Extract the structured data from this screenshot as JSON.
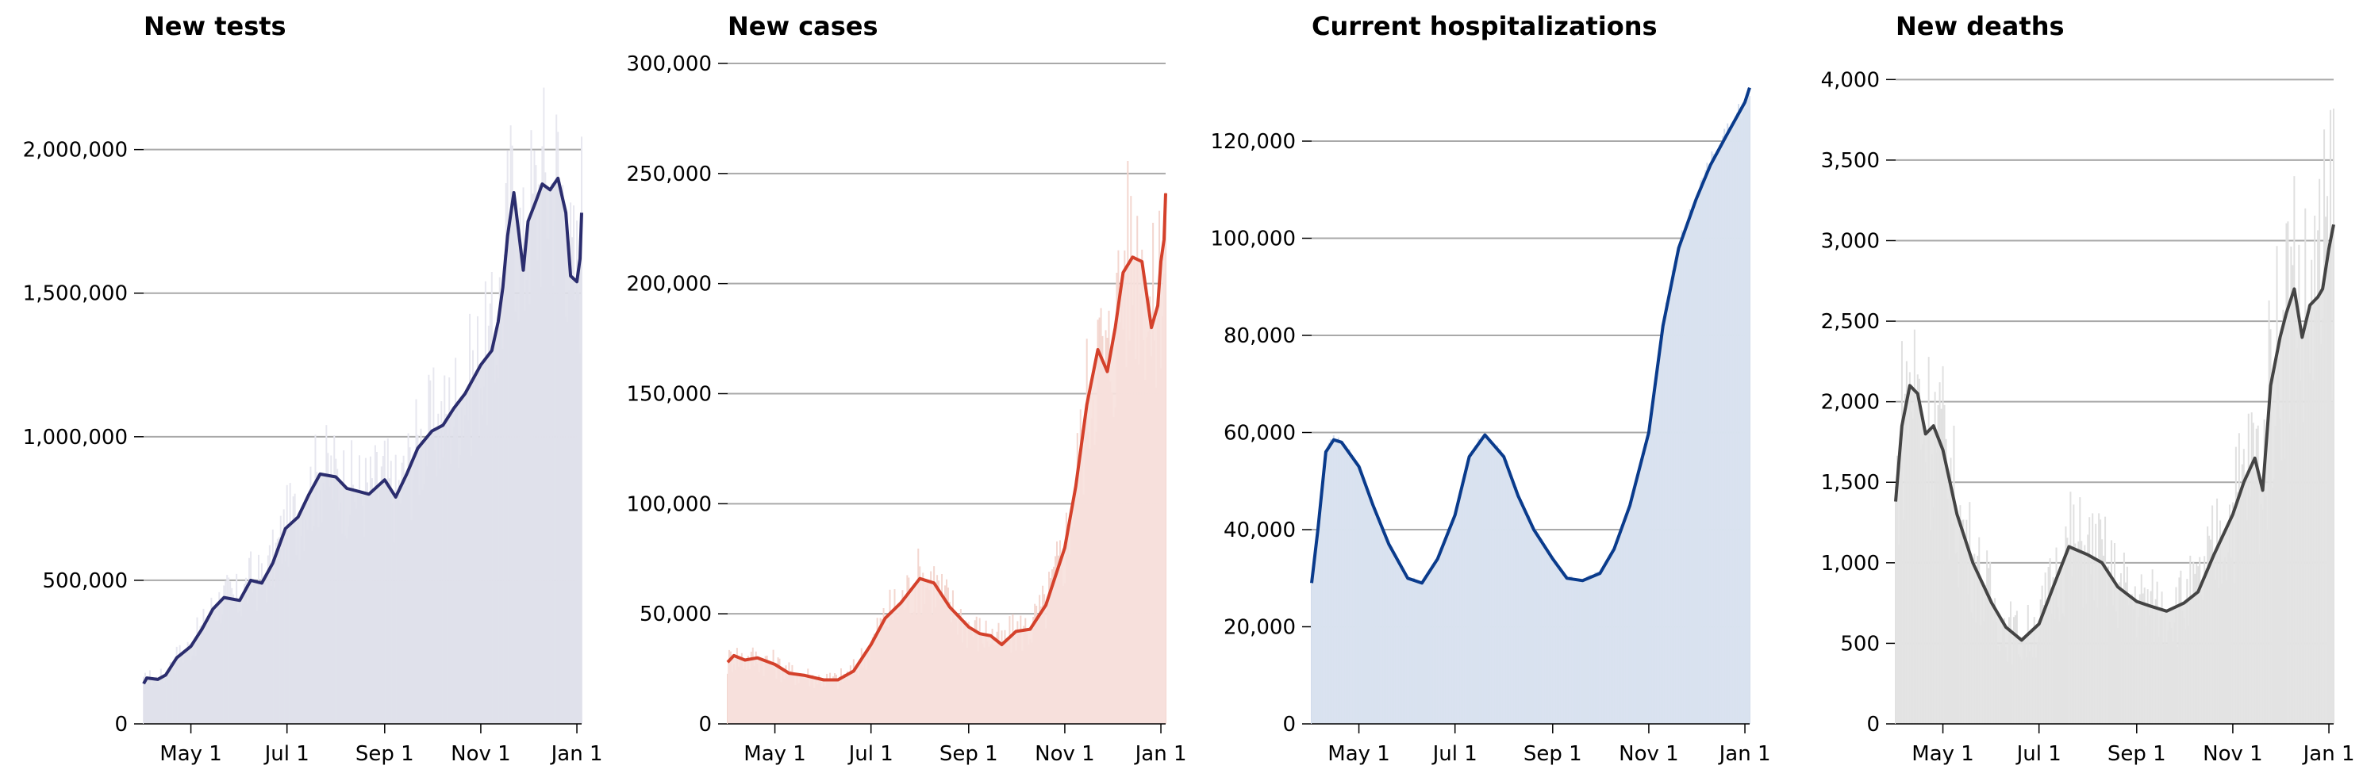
{
  "x_ticks": [
    "May 1",
    "Jul 1",
    "Sep 1",
    "Nov 1",
    "Jan 1"
  ],
  "chart_data": [
    {
      "type": "area",
      "title": "New tests",
      "color": "#2b2d6e",
      "fill": "#dfe0ea",
      "daily_color": "#e7e7ef",
      "ylim": [
        0,
        2300000
      ],
      "yticks": [
        0,
        500000,
        1000000,
        1500000,
        2000000
      ],
      "ytick_labels": [
        "0",
        "500,000",
        "1,000,000",
        "1,500,000",
        "2,000,000"
      ],
      "grid": true,
      "x_start": "Apr 1",
      "x_end": "Jan 4",
      "x_dates": [
        "Apr 1",
        "Apr 3",
        "Apr 10",
        "Apr 15",
        "Apr 22",
        "May 1",
        "May 8",
        "May 15",
        "May 22",
        "Jun 1",
        "Jun 8",
        "Jun 15",
        "Jun 22",
        "Jun 30",
        "Jul 8",
        "Jul 15",
        "Jul 22",
        "Aug 1",
        "Aug 8",
        "Aug 15",
        "Aug 22",
        "Sep 1",
        "Sep 8",
        "Sep 15",
        "Sep 22",
        "Oct 1",
        "Oct 8",
        "Oct 15",
        "Oct 22",
        "Nov 1",
        "Nov 8",
        "Nov 12",
        "Nov 15",
        "Nov 18",
        "Nov 22",
        "Nov 28",
        "Dec 1",
        "Dec 6",
        "Dec 10",
        "Dec 15",
        "Dec 20",
        "Dec 25",
        "Dec 28",
        "Jan 1",
        "Jan 3",
        "Jan 4"
      ],
      "values": [
        140000,
        160000,
        155000,
        170000,
        230000,
        270000,
        330000,
        400000,
        440000,
        430000,
        500000,
        490000,
        560000,
        680000,
        720000,
        800000,
        870000,
        860000,
        820000,
        810000,
        800000,
        850000,
        790000,
        870000,
        960000,
        1020000,
        1040000,
        1100000,
        1150000,
        1250000,
        1300000,
        1400000,
        1520000,
        1700000,
        1850000,
        1580000,
        1750000,
        1820000,
        1880000,
        1860000,
        1900000,
        1780000,
        1560000,
        1540000,
        1620000,
        1780000
      ]
    },
    {
      "type": "area",
      "title": "New cases",
      "color": "#d4412b",
      "fill": "#f7e1dd",
      "daily_color": "#f3d6cf",
      "ylim": [
        0,
        300000
      ],
      "yticks": [
        0,
        50000,
        100000,
        150000,
        200000,
        250000,
        300000
      ],
      "ytick_labels": [
        "0",
        "50,000",
        "100,000",
        "150,000",
        "200,000",
        "250,000",
        "300,000"
      ],
      "grid": true,
      "x_start": "Apr 1",
      "x_end": "Jan 4",
      "x_dates": [
        "Apr 1",
        "Apr 5",
        "Apr 12",
        "Apr 20",
        "May 1",
        "May 10",
        "May 20",
        "Jun 1",
        "Jun 10",
        "Jun 20",
        "Jul 1",
        "Jul 10",
        "Jul 20",
        "Aug 1",
        "Aug 10",
        "Aug 20",
        "Sep 1",
        "Sep 8",
        "Sep 15",
        "Sep 22",
        "Oct 1",
        "Oct 10",
        "Oct 20",
        "Nov 1",
        "Nov 8",
        "Nov 15",
        "Nov 22",
        "Nov 28",
        "Dec 3",
        "Dec 8",
        "Dec 14",
        "Dec 20",
        "Dec 26",
        "Dec 30",
        "Jan 1",
        "Jan 3",
        "Jan 4"
      ],
      "values": [
        28000,
        31000,
        29000,
        30000,
        27000,
        23000,
        22000,
        20000,
        20000,
        24000,
        36000,
        48000,
        55000,
        66000,
        64000,
        53000,
        44000,
        41000,
        40000,
        36000,
        42000,
        43000,
        54000,
        80000,
        108000,
        145000,
        170000,
        160000,
        180000,
        205000,
        212000,
        210000,
        180000,
        190000,
        210000,
        220000,
        241000
      ]
    },
    {
      "type": "area",
      "title": "Current hospitalizations",
      "color": "#0a3b8c",
      "fill": "#d9e2f0",
      "daily_color": "#d2dcec",
      "ylim": [
        0,
        136000
      ],
      "yticks": [
        0,
        20000,
        40000,
        60000,
        80000,
        100000,
        120000
      ],
      "ytick_labels": [
        "0",
        "20,000",
        "40,000",
        "60,000",
        "80,000",
        "100,000",
        "120,000"
      ],
      "grid": true,
      "x_start": "Apr 1",
      "x_end": "Jan 4",
      "x_dates": [
        "Apr 1",
        "Apr 5",
        "Apr 10",
        "Apr 15",
        "Apr 20",
        "May 1",
        "May 10",
        "May 20",
        "Jun 1",
        "Jun 10",
        "Jun 20",
        "Jul 1",
        "Jul 10",
        "Jul 20",
        "Aug 1",
        "Aug 10",
        "Aug 20",
        "Sep 1",
        "Sep 10",
        "Sep 20",
        "Oct 1",
        "Oct 10",
        "Oct 20",
        "Nov 1",
        "Nov 10",
        "Nov 20",
        "Dec 1",
        "Dec 10",
        "Dec 20",
        "Jan 1",
        "Jan 4"
      ],
      "values": [
        29000,
        40000,
        56000,
        58500,
        58000,
        53000,
        45000,
        37000,
        30000,
        29000,
        34000,
        43000,
        55000,
        59500,
        55000,
        47000,
        40000,
        34000,
        30000,
        29500,
        31000,
        36000,
        45000,
        60000,
        82000,
        98000,
        108000,
        115000,
        121000,
        128000,
        131000
      ]
    },
    {
      "type": "area",
      "title": "New deaths",
      "color": "#444444",
      "fill": "#e3e3e3",
      "daily_color": "#e0e0e0",
      "ylim": [
        0,
        4100
      ],
      "yticks": [
        0,
        500,
        1000,
        1500,
        2000,
        2500,
        3000,
        3500,
        4000
      ],
      "ytick_labels": [
        "0",
        "500",
        "1,000",
        "1,500",
        "2,000",
        "2,500",
        "3,000",
        "3,500",
        "4,000"
      ],
      "grid": true,
      "x_start": "Apr 1",
      "x_end": "Jan 4",
      "x_dates": [
        "Apr 1",
        "Apr 5",
        "Apr 10",
        "Apr 15",
        "Apr 20",
        "Apr 25",
        "May 1",
        "May 10",
        "May 20",
        "Jun 1",
        "Jun 10",
        "Jun 20",
        "Jul 1",
        "Jul 10",
        "Jul 20",
        "Aug 1",
        "Aug 10",
        "Aug 20",
        "Sep 1",
        "Sep 10",
        "Sep 20",
        "Oct 1",
        "Oct 10",
        "Oct 20",
        "Nov 1",
        "Nov 8",
        "Nov 15",
        "Nov 20",
        "Nov 25",
        "Dec 1",
        "Dec 5",
        "Dec 10",
        "Dec 15",
        "Dec 20",
        "Dec 25",
        "Dec 28",
        "Jan 1",
        "Jan 4"
      ],
      "values": [
        1380,
        1850,
        2100,
        2050,
        1800,
        1850,
        1700,
        1300,
        1000,
        750,
        600,
        520,
        620,
        850,
        1100,
        1050,
        1000,
        850,
        760,
        730,
        700,
        750,
        820,
        1050,
        1300,
        1500,
        1650,
        1450,
        2100,
        2400,
        2550,
        2700,
        2400,
        2600,
        2650,
        2700,
        2950,
        3100
      ]
    }
  ]
}
